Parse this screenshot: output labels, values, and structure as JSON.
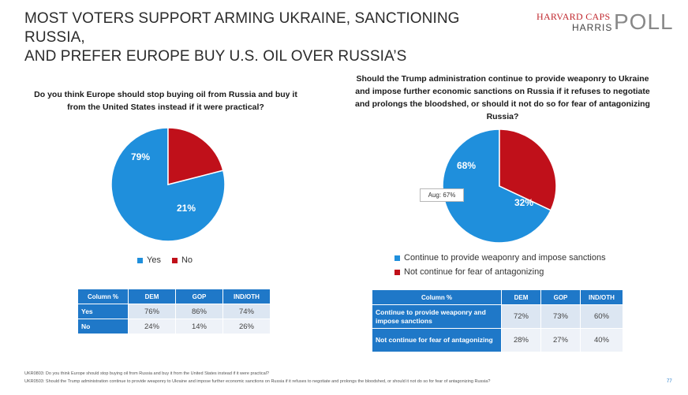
{
  "title": {
    "line1": "MOST VOTERS SUPPORT ARMING UKRAINE, SANCTIONING RUSSIA,",
    "line2": "AND PREFER EUROPE BUY U.S. OIL OVER RUSSIA’S"
  },
  "logo": {
    "line1": "HARVARD CAPS",
    "line2": "HARRIS",
    "poll": "POLL"
  },
  "colors": {
    "blue": "#1f8fdc",
    "red": "#c0101a",
    "table_header": "#1f78c8"
  },
  "chart_data": [
    {
      "type": "pie",
      "title": "Do you think Europe should stop buying oil from Russia and buy it from the United States instead if it were practical?",
      "categories": [
        "Yes",
        "No"
      ],
      "values": [
        79,
        21
      ],
      "labels": [
        "79%",
        "21%"
      ],
      "colors": [
        "#1f8fdc",
        "#c0101a"
      ],
      "legend": "bottom"
    },
    {
      "type": "pie",
      "title": "Should the Trump administration continue to provide weaponry to Ukraine and impose further economic sanctions on Russia if it refuses to negotiate and prolongs the bloodshed, or should it not do so for fear of antagonizing Russia?",
      "categories": [
        "Continue to provide weaponry and impose sanctions",
        "Not continue for fear of antagonizing"
      ],
      "values": [
        68,
        32
      ],
      "labels": [
        "68%",
        "32%"
      ],
      "colors": [
        "#1f8fdc",
        "#c0101a"
      ],
      "annotation": "Aug: 67%",
      "legend": "bottom"
    },
    {
      "type": "table",
      "columns": [
        "Column %",
        "DEM",
        "GOP",
        "IND/OTH"
      ],
      "rows": [
        {
          "label": "Yes",
          "values": [
            "76%",
            "86%",
            "74%"
          ]
        },
        {
          "label": "No",
          "values": [
            "24%",
            "14%",
            "26%"
          ]
        }
      ]
    },
    {
      "type": "table",
      "columns": [
        "Column %",
        "DEM",
        "GOP",
        "IND/OTH"
      ],
      "rows": [
        {
          "label": "Continue to provide weaponry and impose sanctions",
          "values": [
            "72%",
            "73%",
            "60%"
          ]
        },
        {
          "label": "Not continue for fear of antagonizing",
          "values": [
            "28%",
            "27%",
            "40%"
          ]
        }
      ]
    }
  ],
  "footer": {
    "note1": "UKR0803: Do you think Europe should stop buying oil from Russia and buy it from the United States instead if it were practical?",
    "note2": "UKR0503: Should the Trump administration continue to provide weaponry to Ukraine and impose further economic sanctions on Russia if it refuses to negotiate and prolongs the bloodshed, or should it not do so for fear of antagonizing Russia?",
    "page": "77"
  }
}
